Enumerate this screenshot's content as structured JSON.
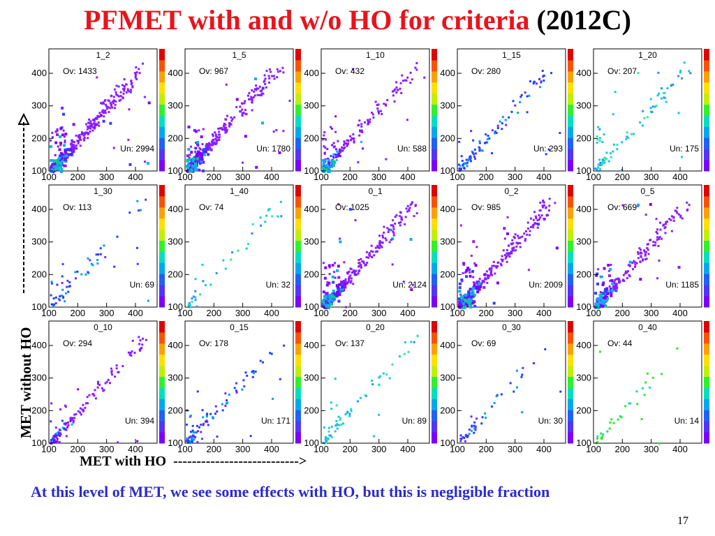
{
  "title": {
    "main": "PFMET with and w/o HO for criteria",
    "suffix": "(2012C)"
  },
  "y_axis_label": "MET without HO",
  "x_axis_label": "MET with HO  --------------------------->",
  "note": "At this level of MET, we see some effects with HO, but this is negligible fraction",
  "page_number": "17",
  "colors": {
    "title": "#e8141c",
    "note": "#2a2ad0",
    "points_low": "#7b2cf0",
    "points_cyan": "#18c8e0",
    "points_green": "#2ee82e"
  },
  "chart_data": [
    {
      "type": "heatmap",
      "title": "1_2",
      "ov": "Ov: 1433",
      "un": "Un: 2994",
      "xticks": [
        "100",
        "200",
        "300",
        "400"
      ],
      "yticks": [
        "100",
        "200",
        "300",
        "400"
      ],
      "xlim": [
        100,
        475
      ],
      "ylim": [
        100,
        475
      ],
      "density": 1.0,
      "color": "purple"
    },
    {
      "type": "heatmap",
      "title": "1_5",
      "ov": "Ov: 967",
      "un": "Un: 1780",
      "xticks": [
        "100",
        "200",
        "300",
        "400"
      ],
      "yticks": [
        "100",
        "200",
        "300",
        "400"
      ],
      "xlim": [
        100,
        475
      ],
      "ylim": [
        100,
        475
      ],
      "density": 0.8,
      "color": "purple"
    },
    {
      "type": "heatmap",
      "title": "1_10",
      "ov": "Ov: 432",
      "un": "Un: 588",
      "xticks": [
        "100",
        "200",
        "300",
        "400"
      ],
      "yticks": [
        "100",
        "200",
        "300",
        "400"
      ],
      "xlim": [
        100,
        475
      ],
      "ylim": [
        100,
        475
      ],
      "density": 0.45,
      "color": "purple"
    },
    {
      "type": "heatmap",
      "title": "1_15",
      "ov": "Ov: 280",
      "un": "Un: 293",
      "xticks": [
        "100",
        "200",
        "300",
        "400"
      ],
      "yticks": [
        "100",
        "200",
        "300",
        "400"
      ],
      "xlim": [
        100,
        475
      ],
      "ylim": [
        100,
        475
      ],
      "density": 0.25,
      "color": "blue"
    },
    {
      "type": "heatmap",
      "title": "1_20",
      "ov": "Ov: 207",
      "un": "Un: 175",
      "xticks": [
        "100",
        "200",
        "300",
        "400"
      ],
      "yticks": [
        "100",
        "200",
        "300",
        "400"
      ],
      "xlim": [
        100,
        475
      ],
      "ylim": [
        100,
        475
      ],
      "density": 0.2,
      "color": "cyan"
    },
    {
      "type": "heatmap",
      "title": "1_30",
      "ov": "Ov: 113",
      "un": "Un: 69",
      "xticks": [
        "100",
        "200",
        "300",
        "400"
      ],
      "yticks": [
        "100",
        "200",
        "300",
        "400"
      ],
      "xlim": [
        100,
        475
      ],
      "ylim": [
        100,
        475
      ],
      "density": 0.12,
      "color": "blue"
    },
    {
      "type": "heatmap",
      "title": "1_40",
      "ov": "Ov: 74",
      "un": "Un: 32",
      "xticks": [
        "100",
        "200",
        "300",
        "400"
      ],
      "yticks": [
        "100",
        "200",
        "300",
        "400"
      ],
      "xlim": [
        100,
        475
      ],
      "ylim": [
        100,
        475
      ],
      "density": 0.08,
      "color": "cyan"
    },
    {
      "type": "heatmap",
      "title": "0_1",
      "ov": "Ov: 1025",
      "un": "Un: 2124",
      "xticks": [
        "100",
        "200",
        "300",
        "400"
      ],
      "yticks": [
        "100",
        "200",
        "300",
        "400"
      ],
      "xlim": [
        100,
        475
      ],
      "ylim": [
        100,
        475
      ],
      "density": 0.85,
      "color": "purple"
    },
    {
      "type": "heatmap",
      "title": "0_2",
      "ov": "Ov: 985",
      "un": "Un: 2009",
      "xticks": [
        "100",
        "200",
        "300",
        "400"
      ],
      "yticks": [
        "100",
        "200",
        "300",
        "400"
      ],
      "xlim": [
        100,
        475
      ],
      "ylim": [
        100,
        475
      ],
      "density": 0.82,
      "color": "purple"
    },
    {
      "type": "heatmap",
      "title": "0_5",
      "ov": "Ov: 669",
      "un": "Un: 1185",
      "xticks": [
        "100",
        "200",
        "300",
        "400"
      ],
      "yticks": [
        "100",
        "200",
        "300",
        "400"
      ],
      "xlim": [
        100,
        475
      ],
      "ylim": [
        100,
        475
      ],
      "density": 0.65,
      "color": "purple"
    },
    {
      "type": "heatmap",
      "title": "0_10",
      "ov": "Ov: 294",
      "un": "Un: 394",
      "xticks": [
        "100",
        "200",
        "300",
        "400"
      ],
      "yticks": [
        "100",
        "200",
        "300",
        "400"
      ],
      "xlim": [
        100,
        475
      ],
      "ylim": [
        100,
        475
      ],
      "density": 0.35,
      "color": "purple"
    },
    {
      "type": "heatmap",
      "title": "0_15",
      "ov": "Ov: 178",
      "un": "Un: 171",
      "xticks": [
        "100",
        "200",
        "300",
        "400"
      ],
      "yticks": [
        "100",
        "200",
        "300",
        "400"
      ],
      "xlim": [
        100,
        475
      ],
      "ylim": [
        100,
        475
      ],
      "density": 0.22,
      "color": "blue"
    },
    {
      "type": "heatmap",
      "title": "0_20",
      "ov": "Ov: 137",
      "un": "Un: 89",
      "xticks": [
        "100",
        "200",
        "300",
        "400"
      ],
      "yticks": [
        "100",
        "200",
        "300",
        "400"
      ],
      "xlim": [
        100,
        475
      ],
      "ylim": [
        100,
        475
      ],
      "density": 0.15,
      "color": "cyan"
    },
    {
      "type": "heatmap",
      "title": "0_30",
      "ov": "Ov: 69",
      "un": "Un: 30",
      "xticks": [
        "100",
        "200",
        "300",
        "400"
      ],
      "yticks": [
        "100",
        "200",
        "300",
        "400"
      ],
      "xlim": [
        100,
        475
      ],
      "ylim": [
        100,
        475
      ],
      "density": 0.08,
      "color": "blue"
    },
    {
      "type": "heatmap",
      "title": "0_40",
      "ov": "Ov: 44",
      "un": "Un: 14",
      "xticks": [
        "100",
        "200",
        "300",
        "400"
      ],
      "yticks": [
        "100",
        "200",
        "300",
        "400"
      ],
      "xlim": [
        100,
        475
      ],
      "ylim": [
        100,
        475
      ],
      "density": 0.05,
      "color": "green"
    }
  ]
}
